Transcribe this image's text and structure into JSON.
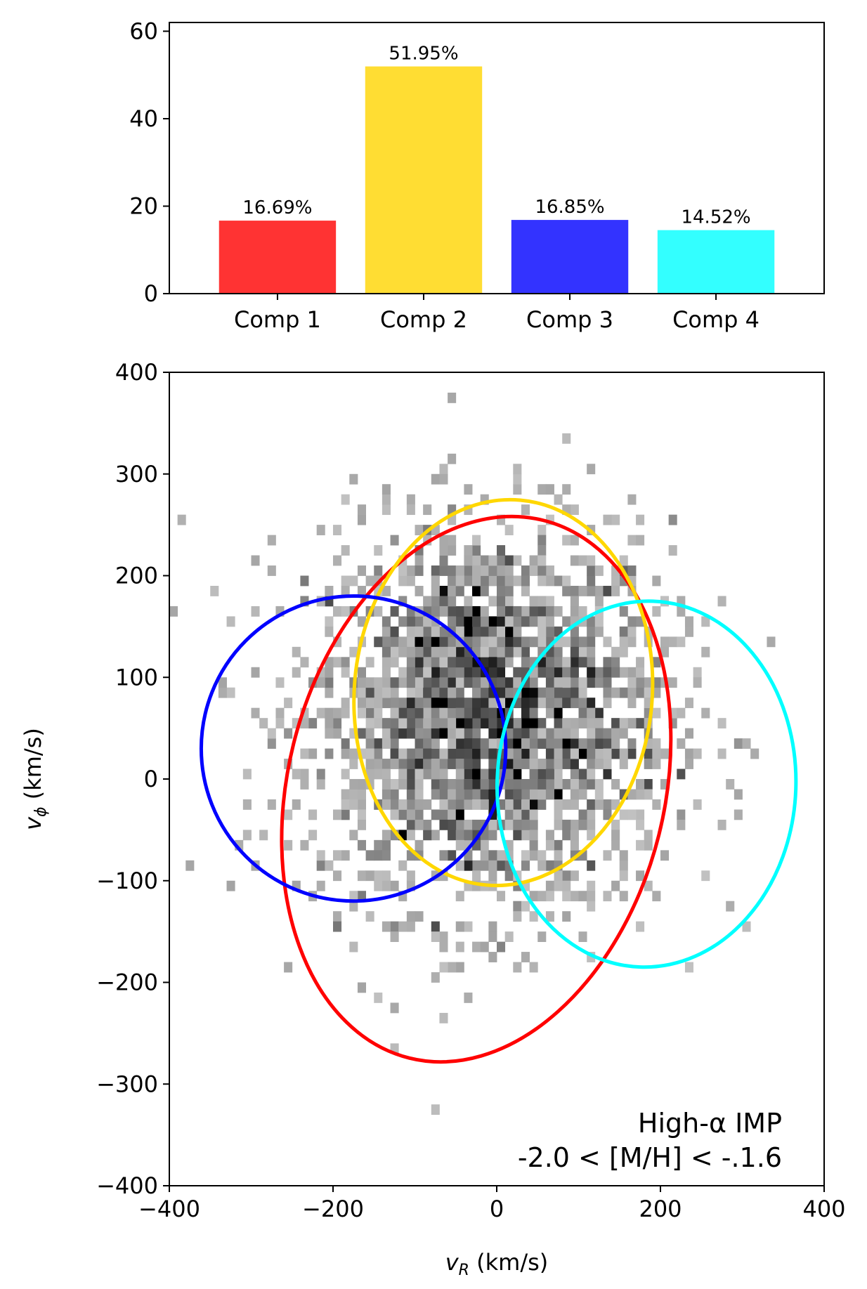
{
  "chart_data": [
    {
      "type": "bar",
      "categories": [
        "Comp 1",
        "Comp 2",
        "Comp 3",
        "Comp 4"
      ],
      "values": [
        16.69,
        51.95,
        16.85,
        14.52
      ],
      "data_labels": [
        "16.69%",
        "51.95%",
        "16.85%",
        "14.52%"
      ],
      "colors": [
        "#ff3333",
        "#ffdd33",
        "#3333ff",
        "#33ffff"
      ],
      "ylim": [
        0,
        62
      ],
      "yticks": [
        0,
        20,
        40,
        60
      ],
      "ytick_labels": [
        "0",
        "20",
        "40",
        "60"
      ],
      "title": "",
      "xlabel": "",
      "ylabel": ""
    },
    {
      "type": "heatmap",
      "xlabel_var": "v",
      "xlabel_sub": "R",
      "xlabel_unit": " (km/s)",
      "ylabel_var": "v",
      "ylabel_sub": "ϕ",
      "ylabel_unit": " (km/s)",
      "xlim": [
        -400,
        400
      ],
      "ylim": [
        -400,
        400
      ],
      "xticks": [
        -400,
        -200,
        0,
        200,
        400
      ],
      "xtick_labels": [
        "−400",
        "−200",
        "0",
        "200",
        "400"
      ],
      "yticks": [
        -400,
        -300,
        -200,
        -100,
        0,
        100,
        200,
        300,
        400
      ],
      "ytick_labels": [
        "−400",
        "−300",
        "−200",
        "−100",
        "0",
        "100",
        "200",
        "300",
        "400"
      ],
      "annotation": [
        "High-α IMP",
        "-2.0 < [M/H] < -.1.6"
      ],
      "annotation_placement": "bottom-right",
      "density_center": [
        -10,
        60
      ],
      "density_spread": [
        110,
        95
      ],
      "ellipses": [
        {
          "component": "Comp 1",
          "color": "#ff0000",
          "center": [
            -25,
            -10
          ],
          "width": 460,
          "height": 545,
          "angle": 14
        },
        {
          "component": "Comp 2",
          "color": "#ffd700",
          "center": [
            8,
            85
          ],
          "width": 364,
          "height": 380,
          "angle": 5
        },
        {
          "component": "Comp 3",
          "color": "#0000ff",
          "center": [
            -175,
            30
          ],
          "width": 372,
          "height": 300,
          "angle": 0
        },
        {
          "component": "Comp 4",
          "color": "#00ffff",
          "center": [
            183,
            -5
          ],
          "width": 365,
          "height": 360,
          "angle": 2
        }
      ]
    }
  ]
}
